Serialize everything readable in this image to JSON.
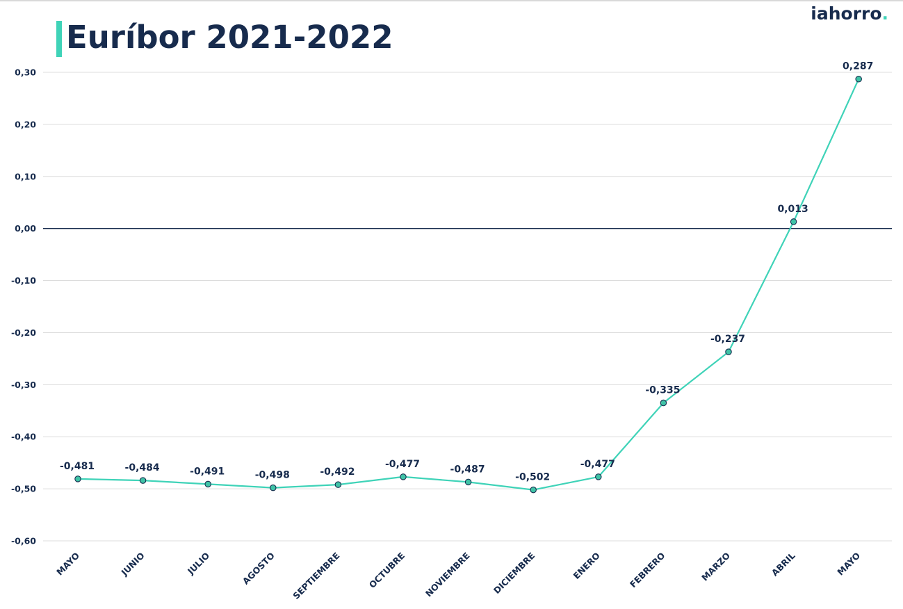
{
  "header": {
    "title": "Euríbor 2021-2022",
    "logo_text": "iahorro",
    "logo_dot": "."
  },
  "colors": {
    "navy": "#172b4d",
    "line": "#3fd3b8",
    "marker_fill": "#3fc3a6",
    "grid": "#dcdcdc",
    "zero_line": "#172b4d"
  },
  "chart_data": {
    "type": "line",
    "title": "Euríbor 2021-2022",
    "categories": [
      "MAYO",
      "JUNIO",
      "JULIO",
      "AGOSTO",
      "SEPTIEMBRE",
      "OCTUBRE",
      "NOVIEMBRE",
      "DICIEMBRE",
      "ENERO",
      "FEBRERO",
      "MARZO",
      "ABRIL",
      "MAYO"
    ],
    "series": [
      {
        "values": [
          -0.481,
          -0.484,
          -0.491,
          -0.498,
          -0.492,
          -0.477,
          -0.487,
          -0.502,
          -0.477,
          -0.335,
          -0.237,
          0.013,
          0.287
        ],
        "labels": [
          "-0,481",
          "-0,484",
          "-0,491",
          "-0,498",
          "-0,492",
          "-0,477",
          "-0,487",
          "-0,502",
          "-0,477",
          "-0,335",
          "-0,237",
          "0,013",
          "0,287"
        ]
      }
    ],
    "ylim": [
      -0.6,
      0.3
    ],
    "yticks": [
      0.3,
      0.2,
      0.1,
      0.0,
      -0.1,
      -0.2,
      -0.3,
      -0.4,
      -0.5,
      -0.6
    ],
    "ytick_labels": [
      "0,30",
      "0,20",
      "0,10",
      "0,00",
      "-0,10",
      "-0,20",
      "-0,30",
      "-0,40",
      "-0,50",
      "-0,60"
    ],
    "xlabel": "",
    "ylabel": "",
    "grid": true,
    "zero_line": true,
    "legend": "none"
  }
}
